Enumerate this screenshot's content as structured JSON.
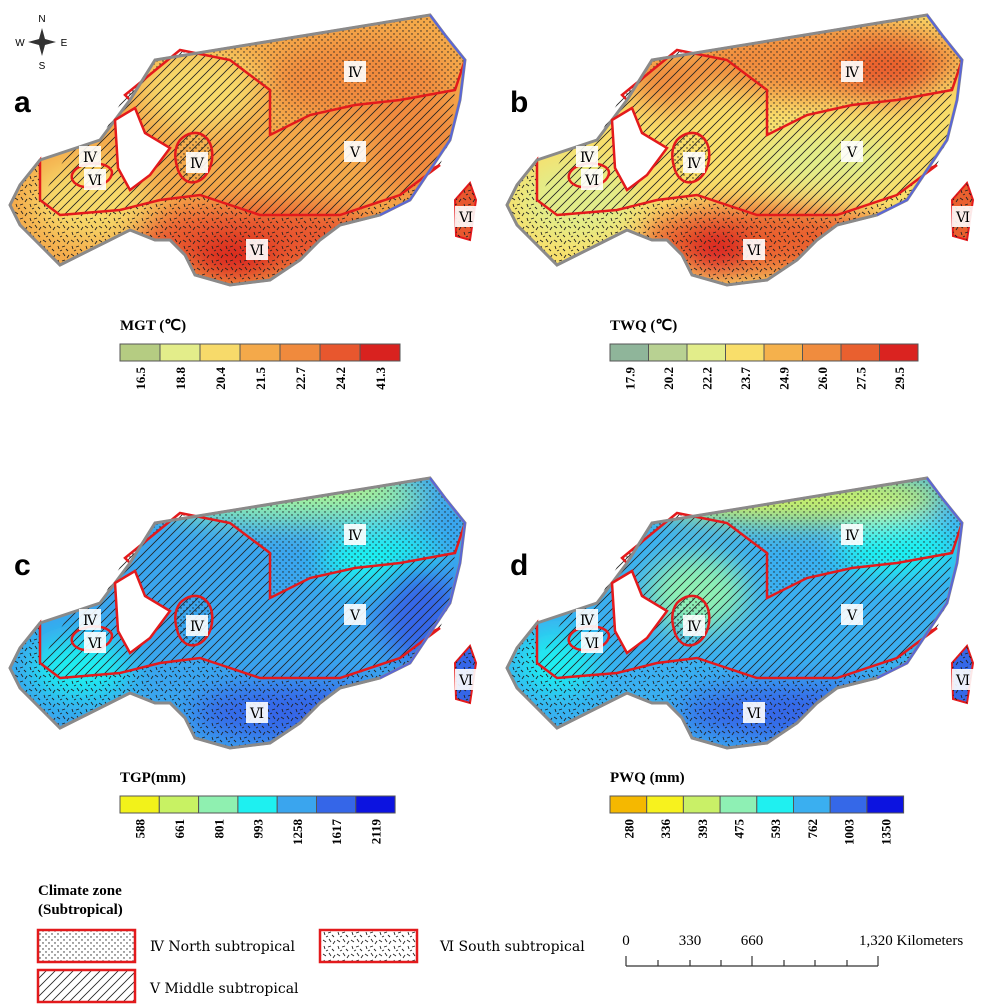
{
  "compass": {
    "n": "N",
    "s": "S",
    "w": "W",
    "e": "E"
  },
  "panels": [
    {
      "letter": "a",
      "legend_title": "MGT (℃)",
      "legend_colors": [
        "#b5cc82",
        "#e3ed8a",
        "#f7da6a",
        "#f4a94a",
        "#f08a3d",
        "#e8572e",
        "#d9221f"
      ],
      "legend_labels": [
        "16.5",
        "18.8",
        "20.4",
        "21.5",
        "22.7",
        "24.2",
        "41.3"
      ],
      "zone_labels": [
        "Ⅳ",
        "Ⅴ",
        "Ⅵ",
        "Ⅳ",
        "Ⅵ",
        "Ⅳ",
        "Ⅵ"
      ]
    },
    {
      "letter": "b",
      "legend_title": "TWQ (℃)",
      "legend_colors": [
        "#8fb59a",
        "#b8d192",
        "#e2ed8a",
        "#f9de6a",
        "#f5b14c",
        "#f08c3e",
        "#e9602f",
        "#da2320"
      ],
      "legend_labels": [
        "17.9",
        "20.2",
        "22.2",
        "23.7",
        "24.9",
        "26.0",
        "27.5",
        "29.5"
      ],
      "zone_labels": [
        "Ⅳ",
        "Ⅴ",
        "Ⅵ",
        "Ⅳ",
        "Ⅵ",
        "Ⅳ",
        "Ⅵ"
      ]
    },
    {
      "letter": "c",
      "legend_title": "TGP(mm)",
      "legend_colors": [
        "#f2f21a",
        "#c8f263",
        "#8ff0b0",
        "#1ef0f0",
        "#3aa5ee",
        "#3566e8",
        "#0c13e0"
      ],
      "legend_labels": [
        "588",
        "661",
        "801",
        "993",
        "1258",
        "1617",
        "2119"
      ],
      "zone_labels": [
        "Ⅳ",
        "Ⅴ",
        "Ⅵ",
        "Ⅳ",
        "Ⅵ",
        "Ⅳ",
        "Ⅵ"
      ]
    },
    {
      "letter": "d",
      "legend_title": "PWQ (mm)",
      "legend_colors": [
        "#f5b800",
        "#f7f21e",
        "#c9f067",
        "#8ef0b4",
        "#1ff0f0",
        "#3aaff0",
        "#3568e8",
        "#0c13e0"
      ],
      "legend_labels": [
        "280",
        "336",
        "393",
        "475",
        "593",
        "762",
        "1003",
        "1350"
      ],
      "zone_labels": [
        "Ⅳ",
        "Ⅴ",
        "Ⅵ",
        "Ⅳ",
        "Ⅵ",
        "Ⅳ",
        "Ⅵ"
      ]
    }
  ],
  "climate_legend": {
    "title_line1": "Climate zone",
    "title_line2": "(Subtropical)",
    "items": [
      "Ⅳ North subtropical",
      "Ⅵ South subtropical",
      "Ⅴ Middle subtropical"
    ]
  },
  "scale_bar": {
    "labels": [
      "0",
      "330",
      "660",
      "1,320 Kilometers"
    ]
  }
}
